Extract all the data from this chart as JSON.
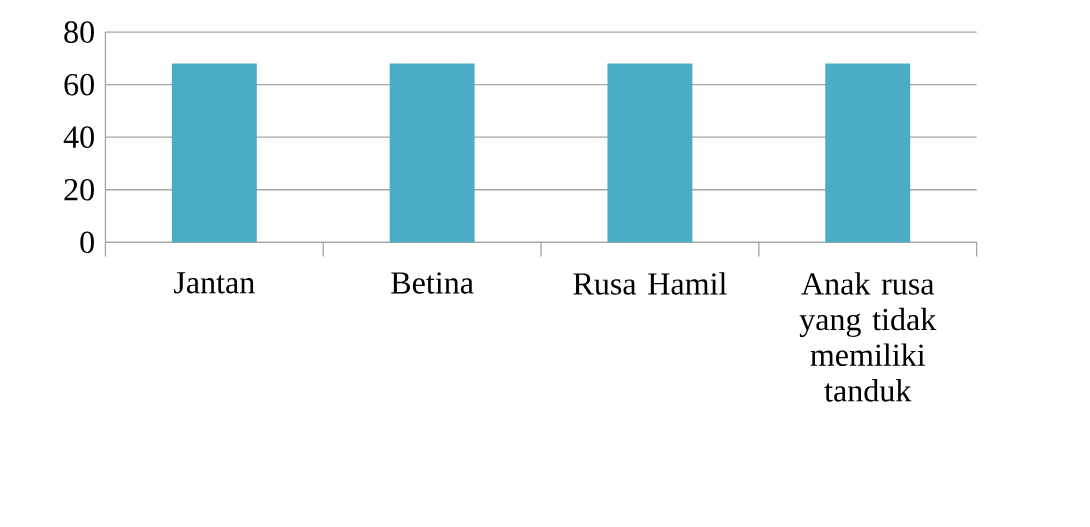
{
  "chart_data": {
    "type": "bar",
    "categories": [
      "Jantan",
      "Betina",
      "Rusa Hamil",
      "Anak rusa yang tidak memiliki tanduk"
    ],
    "values": [
      68,
      68,
      68,
      68
    ],
    "color": "#4bacc6",
    "ylim": [
      0,
      80
    ],
    "yticks": [
      0,
      20,
      40,
      60,
      80
    ],
    "grid": "y"
  }
}
